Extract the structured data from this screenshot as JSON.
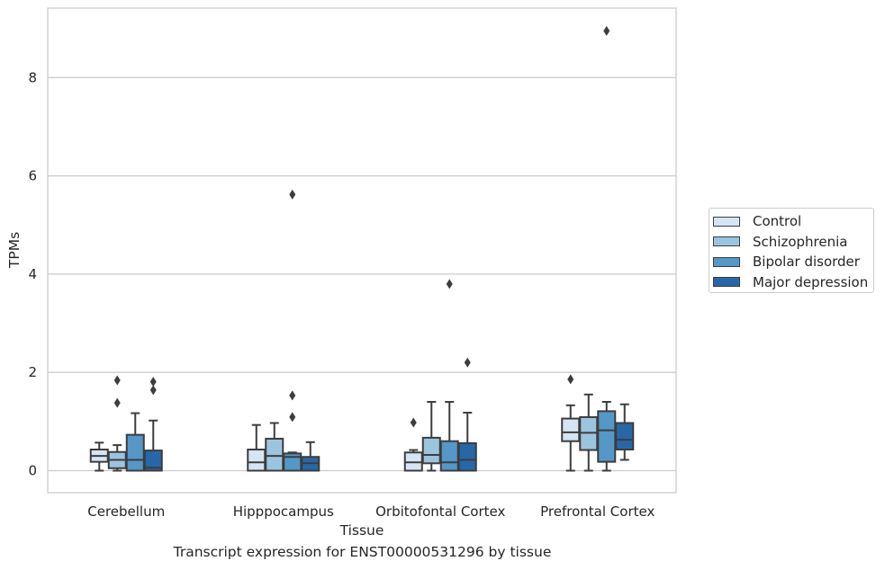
{
  "chart_data": {
    "type": "box",
    "xlabel": "Tissue",
    "ylabel": "TPMs",
    "caption": "Transcript expression for ENST00000531296 by tissue",
    "categories": [
      "Cerebellum",
      "Hipppocampus",
      "Orbitofontal Cortex",
      "Prefrontal Cortex"
    ],
    "ylim": [
      -0.45,
      9.3
    ],
    "yticks": [
      0,
      2,
      4,
      6,
      8
    ],
    "grid": "horizontal",
    "legend_position": "right",
    "series": [
      {
        "name": "Control",
        "color": "#d6e5f4",
        "boxes": [
          {
            "whislo": 0.0,
            "q1": 0.18,
            "med": 0.3,
            "q3": 0.43,
            "whishi": 0.57,
            "fliers": []
          },
          {
            "whislo": 0.0,
            "q1": 0.0,
            "med": 0.17,
            "q3": 0.43,
            "whishi": 0.93,
            "fliers": []
          },
          {
            "whislo": 0.0,
            "q1": 0.0,
            "med": 0.17,
            "q3": 0.37,
            "whishi": 0.42,
            "fliers": [
              0.98
            ]
          },
          {
            "whislo": 0.0,
            "q1": 0.6,
            "med": 0.78,
            "q3": 1.06,
            "whishi": 1.33,
            "fliers": [
              1.86
            ]
          }
        ]
      },
      {
        "name": "Schizophrenia",
        "color": "#9dc4df",
        "boxes": [
          {
            "whislo": 0.0,
            "q1": 0.05,
            "med": 0.22,
            "q3": 0.38,
            "whishi": 0.52,
            "fliers": [
              1.38,
              1.84
            ]
          },
          {
            "whislo": 0.0,
            "q1": 0.0,
            "med": 0.3,
            "q3": 0.65,
            "whishi": 0.97,
            "fliers": []
          },
          {
            "whislo": 0.0,
            "q1": 0.15,
            "med": 0.32,
            "q3": 0.67,
            "whishi": 1.4,
            "fliers": []
          },
          {
            "whislo": 0.0,
            "q1": 0.42,
            "med": 0.77,
            "q3": 1.09,
            "whishi": 1.55,
            "fliers": []
          }
        ]
      },
      {
        "name": "Bipolar disorder",
        "color": "#5597c7",
        "boxes": [
          {
            "whislo": 0.0,
            "q1": 0.0,
            "med": 0.22,
            "q3": 0.73,
            "whishi": 1.17,
            "fliers": []
          },
          {
            "whislo": 0.0,
            "q1": 0.0,
            "med": 0.28,
            "q3": 0.35,
            "whishi": 0.37,
            "fliers": [
              1.09,
              1.53,
              5.62
            ]
          },
          {
            "whislo": 0.0,
            "q1": 0.0,
            "med": 0.17,
            "q3": 0.6,
            "whishi": 1.4,
            "fliers": [
              3.8
            ]
          },
          {
            "whislo": 0.0,
            "q1": 0.18,
            "med": 0.82,
            "q3": 1.21,
            "whishi": 1.4,
            "fliers": [
              8.95
            ]
          }
        ]
      },
      {
        "name": "Major depression",
        "color": "#2767a8",
        "boxes": [
          {
            "whislo": 0.0,
            "q1": 0.0,
            "med": 0.06,
            "q3": 0.41,
            "whishi": 1.02,
            "fliers": [
              1.64,
              1.81
            ]
          },
          {
            "whislo": 0.0,
            "q1": 0.0,
            "med": 0.15,
            "q3": 0.28,
            "whishi": 0.58,
            "fliers": []
          },
          {
            "whislo": 0.0,
            "q1": 0.0,
            "med": 0.22,
            "q3": 0.56,
            "whishi": 1.18,
            "fliers": [
              2.2
            ]
          },
          {
            "whislo": 0.22,
            "q1": 0.43,
            "med": 0.63,
            "q3": 0.97,
            "whishi": 1.35,
            "fliers": []
          }
        ]
      }
    ]
  }
}
